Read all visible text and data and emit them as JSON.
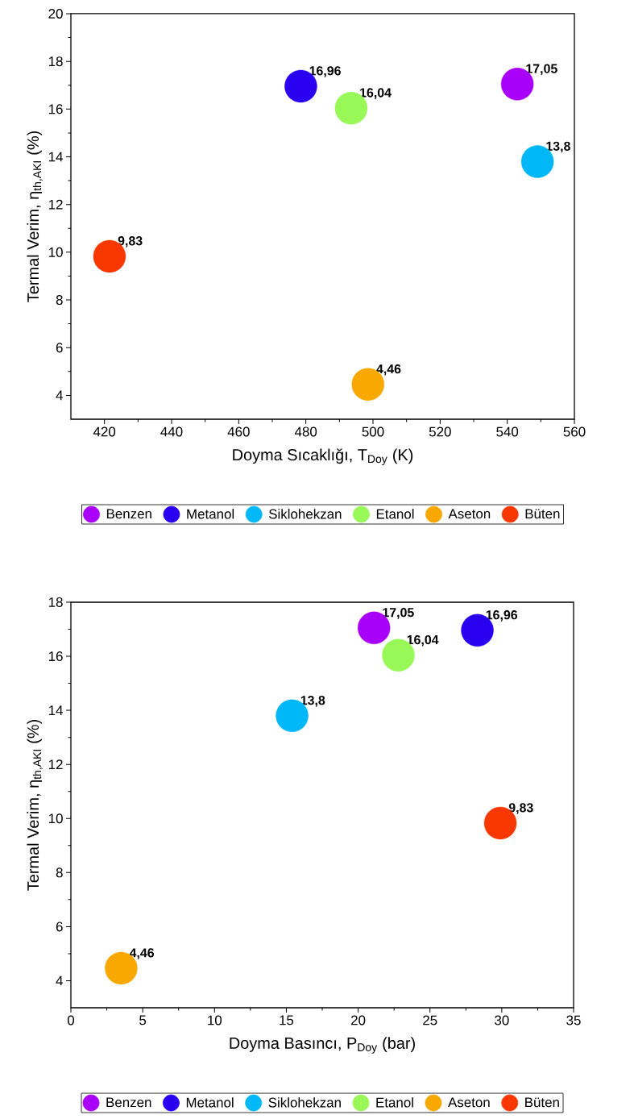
{
  "chart_data": [
    {
      "type": "scatter",
      "xlabel": "Doyma Sıcaklığı, T$_{Doy}$ (K)",
      "ylabel": "Termal Verim, η$_{th,AKI}$ (%)",
      "xlim": [
        410,
        560
      ],
      "ylim": [
        3,
        20
      ],
      "xticks": [
        420,
        440,
        460,
        480,
        500,
        520,
        540,
        560
      ],
      "yticks": [
        4,
        6,
        8,
        10,
        12,
        14,
        16,
        18,
        20
      ],
      "marker": "circle",
      "legend": "bottom",
      "grid": false,
      "series": [
        {
          "name": "Benzen",
          "color": "#a800f8",
          "x": [
            543
          ],
          "values": [
            17.05
          ],
          "value_labels": [
            "17,05"
          ]
        },
        {
          "name": "Metanol",
          "color": "#2a00f0",
          "x": [
            478.5
          ],
          "values": [
            16.96
          ],
          "value_labels": [
            "16,96"
          ]
        },
        {
          "name": "Siklohekzan",
          "color": "#00b8f8",
          "x": [
            549
          ],
          "values": [
            13.8
          ],
          "value_labels": [
            "13,8"
          ]
        },
        {
          "name": "Etanol",
          "color": "#98f858",
          "x": [
            493.5
          ],
          "values": [
            16.04
          ],
          "value_labels": [
            "16,04"
          ]
        },
        {
          "name": "Aseton",
          "color": "#f8a800",
          "x": [
            498.5
          ],
          "values": [
            4.46
          ],
          "value_labels": [
            "4,46"
          ]
        },
        {
          "name": "Büten",
          "color": "#f83800",
          "x": [
            421.5
          ],
          "values": [
            9.83
          ],
          "value_labels": [
            "9,83"
          ]
        }
      ]
    },
    {
      "type": "scatter",
      "xlabel": "Doyma Basıncı, P$_{Doy}$ (bar)",
      "ylabel": "Termal Verim, η$_{th,AKI}$ (%)",
      "xlim": [
        0,
        35
      ],
      "ylim": [
        3,
        18
      ],
      "xticks": [
        0,
        5,
        10,
        15,
        20,
        25,
        30,
        35
      ],
      "yticks": [
        4,
        6,
        8,
        10,
        12,
        14,
        16,
        18
      ],
      "marker": "circle",
      "legend": "bottom",
      "grid": false,
      "series": [
        {
          "name": "Benzen",
          "color": "#a800f8",
          "x": [
            21.1
          ],
          "values": [
            17.05
          ],
          "value_labels": [
            "17,05"
          ]
        },
        {
          "name": "Metanol",
          "color": "#2a00f0",
          "x": [
            28.3
          ],
          "values": [
            16.96
          ],
          "value_labels": [
            "16,96"
          ]
        },
        {
          "name": "Siklohekzan",
          "color": "#00b8f8",
          "x": [
            15.4
          ],
          "values": [
            13.8
          ],
          "value_labels": [
            "13,8"
          ]
        },
        {
          "name": "Etanol",
          "color": "#98f858",
          "x": [
            22.8
          ],
          "values": [
            16.04
          ],
          "value_labels": [
            "16,04"
          ]
        },
        {
          "name": "Aseton",
          "color": "#f8a800",
          "x": [
            3.5
          ],
          "values": [
            4.46
          ],
          "value_labels": [
            "4,46"
          ]
        },
        {
          "name": "Büten",
          "color": "#f83800",
          "x": [
            29.9
          ],
          "values": [
            9.83
          ],
          "value_labels": [
            "9,83"
          ]
        }
      ]
    }
  ]
}
